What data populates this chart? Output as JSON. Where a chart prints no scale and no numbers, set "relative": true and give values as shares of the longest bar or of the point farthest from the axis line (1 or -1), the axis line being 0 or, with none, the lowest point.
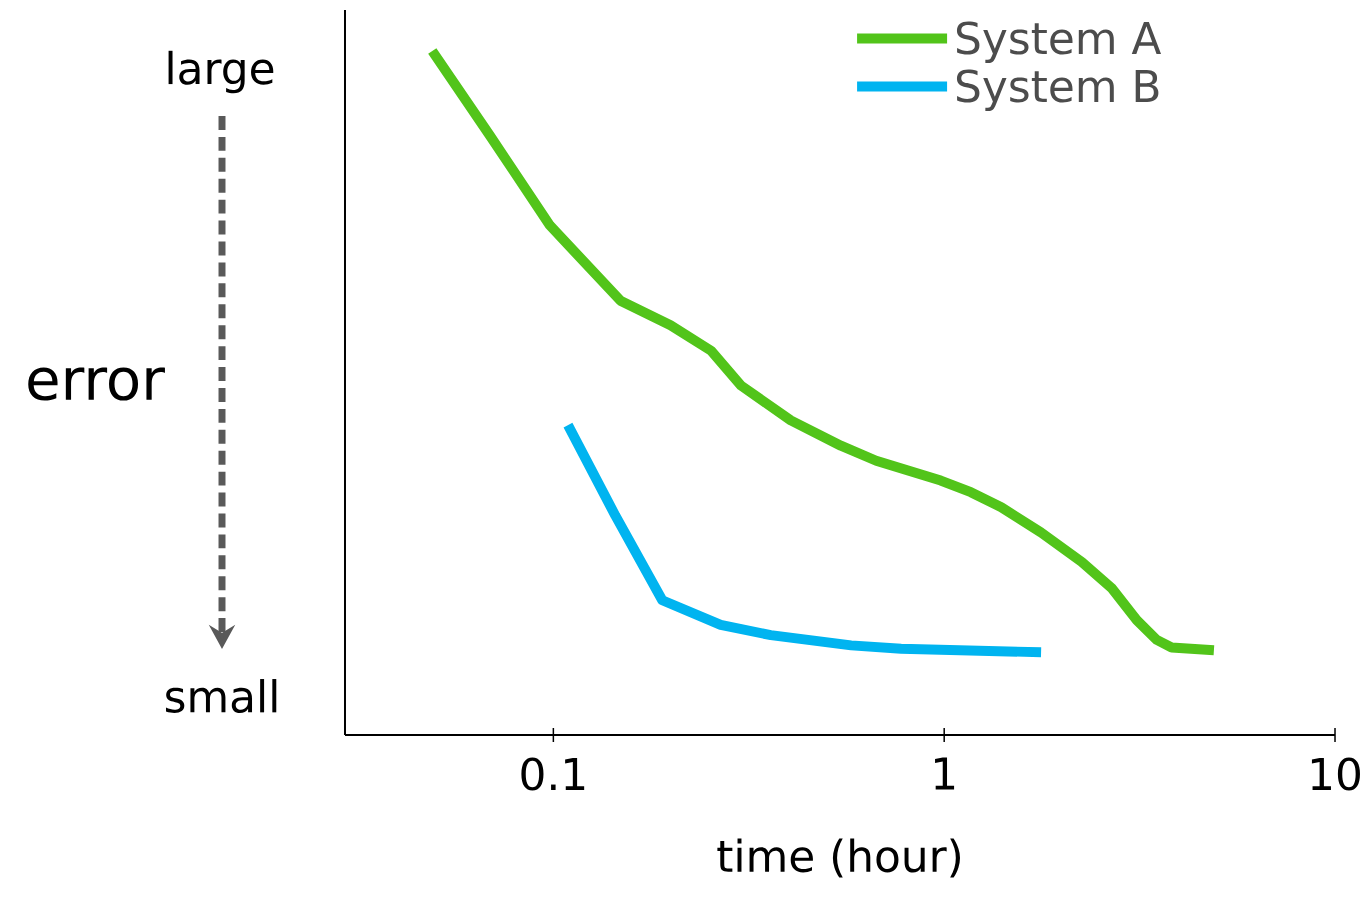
{
  "chart_data": {
    "type": "line",
    "xlabel": "time (hour)",
    "ylabel": "error",
    "log": "x",
    "xlim": [
      0.0293,
      10
    ],
    "xticks": [
      0.1,
      1,
      10
    ],
    "relative": true,
    "legend": "top right",
    "grid": false,
    "annotations": [
      "large",
      "small"
    ],
    "series": [
      {
        "name": "System A",
        "color": "#52c41a",
        "x": [
          0.049,
          0.0689,
          0.098,
          0.1485,
          0.1995,
          0.253,
          0.302,
          0.405,
          0.544,
          0.67,
          0.98,
          1.17,
          1.4,
          1.77,
          2.25,
          2.68,
          3.11,
          3.5,
          3.82,
          4.9
        ],
        "values": [
          1.0,
          0.876,
          0.745,
          0.635,
          0.599,
          0.562,
          0.511,
          0.46,
          0.423,
          0.401,
          0.372,
          0.355,
          0.333,
          0.296,
          0.253,
          0.215,
          0.168,
          0.139,
          0.128,
          0.124
        ]
      },
      {
        "name": "System B",
        "color": "#00b4f0",
        "x": [
          0.109,
          0.144,
          0.19,
          0.268,
          0.36,
          0.578,
          0.776,
          1.77
        ],
        "values": [
          0.453,
          0.321,
          0.197,
          0.161,
          0.146,
          0.131,
          0.126,
          0.121
        ]
      }
    ]
  }
}
